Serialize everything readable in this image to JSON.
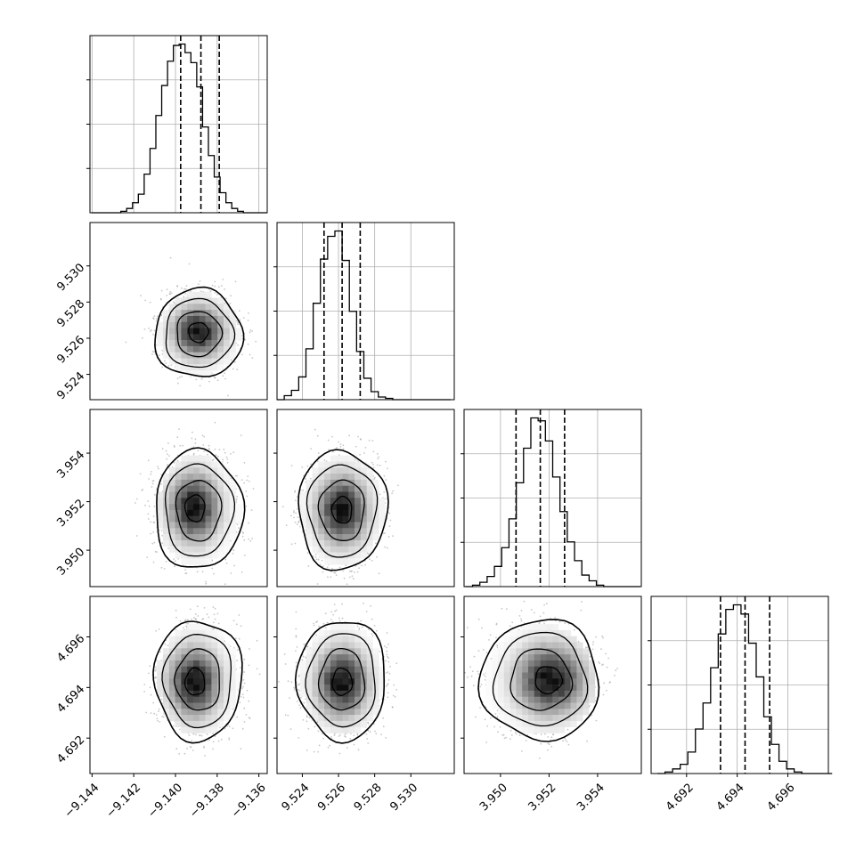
{
  "figure": {
    "kind": "corner-plot",
    "grid": true,
    "panel_frame_color": "#000000",
    "grid_color": "#b0b0b0",
    "hist_color": "#000000",
    "quantile_line_style": "dashed",
    "contour_color": "#000000",
    "scatter_color": "#9a9a9a",
    "density_colormap": [
      "#ffffff",
      "#000000"
    ]
  },
  "chart_data": [
    {
      "type": "histogram",
      "parameter_index": 0,
      "x_ticks": [
        "−9.144",
        "−9.142",
        "−9.140",
        "−9.138",
        "−9.136"
      ],
      "x_tick_values": [
        -9.144,
        -9.142,
        -9.14,
        -9.138,
        -9.136
      ],
      "xlim": [
        -9.1441,
        -9.1356
      ],
      "bins": [
        -9.14388,
        -9.1436,
        -9.14332,
        -9.14304,
        -9.14276,
        -9.14248,
        -9.1422,
        -9.14192,
        -9.14164,
        -9.14136,
        -9.14108,
        -9.1408,
        -9.14052,
        -9.14024,
        -9.13996,
        -9.13968,
        -9.1394,
        -9.13912,
        -9.13884,
        -9.13856,
        -9.13828,
        -9.138,
        -9.13772,
        -9.13744,
        -9.13716,
        -9.13688,
        -9.1366,
        -9.13632,
        -9.13604,
        -9.13576
      ],
      "counts": [
        0,
        0,
        0,
        0,
        0,
        0.5,
        1.5,
        3.5,
        6.5,
        13.5,
        22.5,
        34,
        44.5,
        53,
        58.5,
        59,
        56,
        52.5,
        44,
        30,
        20,
        12.5,
        7,
        3.5,
        1.5,
        0.5,
        0,
        0,
        0,
        0
      ],
      "quantiles": [
        -9.13975,
        -9.13878,
        -9.1379
      ]
    },
    {
      "type": "histogram",
      "parameter_index": 1,
      "x_ticks": [
        "9.524",
        "9.526",
        "9.528",
        "9.530"
      ],
      "x_tick_values": [
        9.524,
        9.526,
        9.528,
        9.53
      ],
      "xlim": [
        9.5226,
        9.5324
      ],
      "bins": [
        9.5228,
        9.5232,
        9.5236,
        9.524,
        9.5244,
        9.5248,
        9.5252,
        9.5256,
        9.526,
        9.5264,
        9.5268,
        9.5272,
        9.5276,
        9.528,
        9.5284,
        9.5288,
        9.5292,
        9.5296,
        9.53,
        9.5304,
        9.5308,
        9.5312,
        9.5316,
        9.532
      ],
      "counts": [
        0,
        1.5,
        3.5,
        8.5,
        19,
        36,
        52.5,
        61,
        63,
        52,
        33,
        18,
        8,
        3,
        1,
        0.5,
        0,
        0,
        0,
        0,
        0,
        0,
        0,
        0
      ],
      "quantiles": [
        9.5252,
        9.5262,
        9.5272
      ]
    },
    {
      "type": "histogram",
      "parameter_index": 2,
      "x_ticks": [
        "3.950",
        "3.952",
        "3.954"
      ],
      "x_tick_values": [
        3.95,
        3.952,
        3.954
      ],
      "xlim": [
        3.9485,
        3.9558
      ],
      "bins": [
        3.9487,
        3.949,
        3.9493,
        3.9496,
        3.9499,
        3.9502,
        3.9505,
        3.9508,
        3.9511,
        3.9514,
        3.9517,
        3.952,
        3.9523,
        3.9526,
        3.9529,
        3.9532,
        3.9535,
        3.9538,
        3.9541,
        3.9544,
        3.9547,
        3.955,
        3.9553,
        3.9556
      ],
      "counts": [
        0,
        0.5,
        1.5,
        3.5,
        7,
        13.5,
        23.5,
        36,
        48,
        58.5,
        57.5,
        50.5,
        38,
        26,
        15.5,
        9,
        4,
        2,
        0.5,
        0,
        0,
        0,
        0,
        0
      ],
      "quantiles": [
        3.95064,
        3.95164,
        3.95264
      ]
    },
    {
      "type": "histogram",
      "parameter_index": 3,
      "x_ticks": [
        "4.692",
        "4.694",
        "4.696"
      ],
      "x_tick_values": [
        4.692,
        4.694,
        4.696
      ],
      "xlim": [
        4.6906,
        4.6976
      ],
      "bins": [
        4.691,
        4.6913,
        4.6916,
        4.6919,
        4.6922,
        4.6925,
        4.6928,
        4.6931,
        4.6934,
        4.6937,
        4.694,
        4.6943,
        4.6946,
        4.6949,
        4.6952,
        4.6955,
        4.6958,
        4.6961,
        4.6964,
        4.6967,
        4.697,
        4.6973,
        4.6976
      ],
      "counts": [
        0,
        0.5,
        1.5,
        3,
        7,
        14.5,
        23,
        34.5,
        45.5,
        53.5,
        55,
        52,
        42.5,
        31.5,
        18.5,
        9.5,
        4,
        1.5,
        0.5,
        0,
        0,
        0,
        0
      ],
      "quantiles": [
        4.69334,
        4.69431,
        4.69528
      ]
    },
    {
      "type": "heatmap",
      "x_parameter": 0,
      "y_parameter": 1,
      "y_ticks": [
        "9.524",
        "9.526",
        "9.528",
        "9.530"
      ],
      "y_tick_values": [
        9.524,
        9.526,
        9.528,
        9.53
      ],
      "ylim": [
        9.5226,
        9.5324
      ],
      "center": [
        -9.1389,
        9.52625
      ],
      "sigma": [
        0.00086,
        0.001
      ],
      "peak_offset": [
        0,
        0.0001
      ]
    },
    {
      "type": "heatmap",
      "x_parameter": 0,
      "y_parameter": 2,
      "y_ticks": [
        "3.950",
        "3.952",
        "3.954"
      ],
      "y_tick_values": [
        3.95,
        3.952,
        3.954
      ],
      "ylim": [
        3.9485,
        3.9558
      ],
      "center": [
        -9.1389,
        3.95165
      ],
      "sigma": [
        0.00086,
        0.001
      ],
      "peak_offset": [
        -0.0002,
        0.0001
      ]
    },
    {
      "type": "heatmap",
      "x_parameter": 1,
      "y_parameter": 2,
      "ylim": [
        3.9485,
        3.9558
      ],
      "center": [
        9.5262,
        3.95165
      ],
      "sigma": [
        0.001,
        0.001
      ],
      "peak_offset": [
        0,
        0
      ]
    },
    {
      "type": "heatmap",
      "x_parameter": 0,
      "y_parameter": 3,
      "y_ticks": [
        "4.692",
        "4.694",
        "4.696"
      ],
      "y_tick_values": [
        4.692,
        4.694,
        4.696
      ],
      "ylim": [
        4.6906,
        4.6976
      ],
      "center": [
        -9.1389,
        4.6943
      ],
      "sigma": [
        0.00086,
        0.00097
      ],
      "peak_offset": [
        -0.0002,
        -0.0001
      ]
    },
    {
      "type": "heatmap",
      "x_parameter": 1,
      "y_parameter": 3,
      "ylim": [
        4.6906,
        4.6976
      ],
      "center": [
        9.5262,
        4.6943
      ],
      "sigma": [
        0.001,
        0.00097
      ],
      "peak_offset": [
        0,
        -0.0001
      ]
    },
    {
      "type": "heatmap",
      "x_parameter": 2,
      "y_parameter": 3,
      "ylim": [
        4.6906,
        4.6976
      ],
      "center": [
        3.95165,
        4.6943
      ],
      "sigma": [
        0.001,
        0.00097
      ],
      "peak_offset": [
        0.0004,
        0
      ]
    }
  ]
}
